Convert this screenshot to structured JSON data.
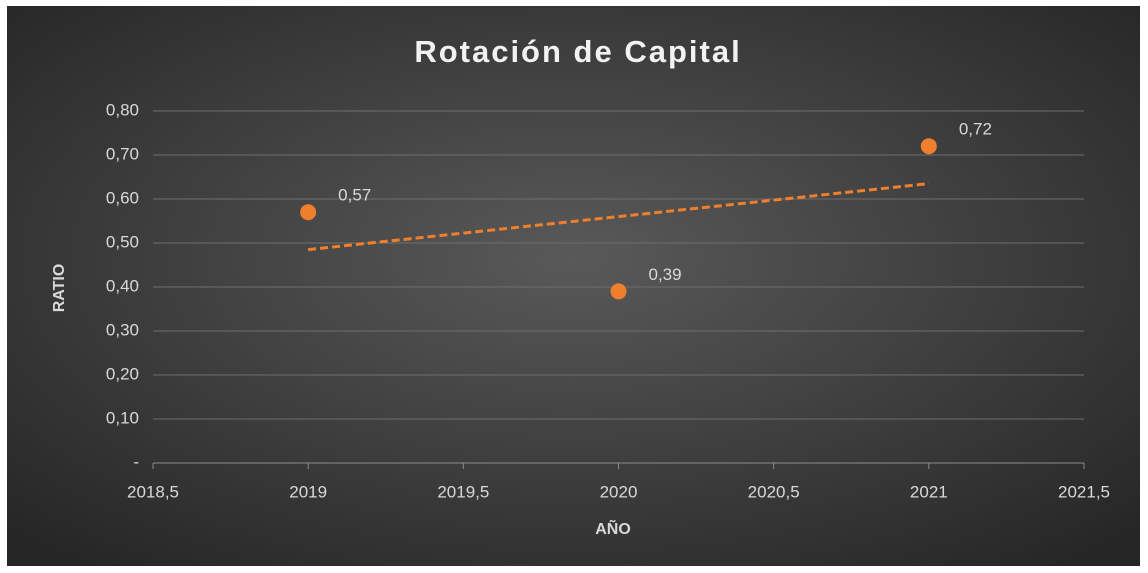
{
  "chart_data": {
    "type": "scatter",
    "title": "Rotación de Capital",
    "x_label": "AÑO",
    "y_label": "RATIO",
    "x": [
      2019,
      2020,
      2021
    ],
    "values": [
      0.57,
      0.39,
      0.72
    ],
    "value_labels": [
      "0,57",
      "0,39",
      "0,72"
    ],
    "color": "#f07f2d",
    "trendline": "linear",
    "xlim": [
      2018.5,
      2021.5
    ],
    "xticks": [
      {
        "value": 2018.5,
        "label": "2018,5"
      },
      2019,
      {
        "value": 2019.5,
        "label": "2019,5"
      },
      2020,
      {
        "value": 2020.5,
        "label": "2020,5"
      },
      2021,
      {
        "value": 2021.5,
        "label": "2021,5"
      }
    ],
    "ylim": [
      0,
      0.8
    ],
    "yticks": [
      {
        "value": 0,
        "label": "-"
      },
      {
        "value": 0.1,
        "label": "0,10"
      },
      {
        "value": 0.2,
        "label": "0,20"
      },
      {
        "value": 0.3,
        "label": "0,30"
      },
      {
        "value": 0.4,
        "label": "0,40"
      },
      {
        "value": 0.5,
        "label": "0,50"
      },
      {
        "value": 0.6,
        "label": "0,60"
      },
      {
        "value": 0.7,
        "label": "0,70"
      },
      {
        "value": 0.8,
        "label": "0,80"
      }
    ],
    "grid": true
  }
}
